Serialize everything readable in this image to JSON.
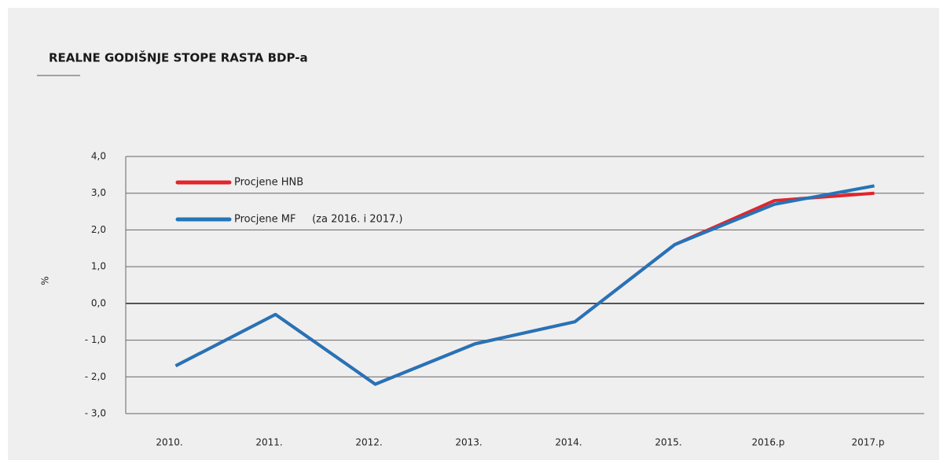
{
  "chart_data": {
    "type": "line",
    "title": "REALNE GODIŠNJE STOPE RASTA BDP-a",
    "ylabel": "%",
    "categories": [
      "2010.",
      "2011.",
      "2012.",
      "2013.",
      "2014.",
      "2015.",
      "2016.p",
      "2017.p"
    ],
    "series": [
      {
        "name": "Procjene HNB",
        "color": "#e3242b",
        "values": [
          -1.7,
          -0.3,
          -2.2,
          -1.1,
          -0.5,
          1.6,
          2.8,
          3.0
        ]
      },
      {
        "name": "Procjene MF     (za 2016. i 2017.)",
        "color": "#2474b9",
        "values": [
          -1.7,
          -0.3,
          -2.2,
          -1.1,
          -0.5,
          1.6,
          2.7,
          3.2
        ]
      }
    ],
    "ylim": [
      -3,
      4
    ],
    "yticks": [
      {
        "value": -3,
        "label": "- 3,0"
      },
      {
        "value": -2,
        "label": "- 2,0"
      },
      {
        "value": -1,
        "label": "- 1,0"
      },
      {
        "value": 0,
        "label": "0,0"
      },
      {
        "value": 1,
        "label": "1,0"
      },
      {
        "value": 2,
        "label": "2,0"
      },
      {
        "value": 3,
        "label": "3,0"
      },
      {
        "value": 4,
        "label": "4,0"
      }
    ],
    "grid": true,
    "legend": "upper left"
  }
}
